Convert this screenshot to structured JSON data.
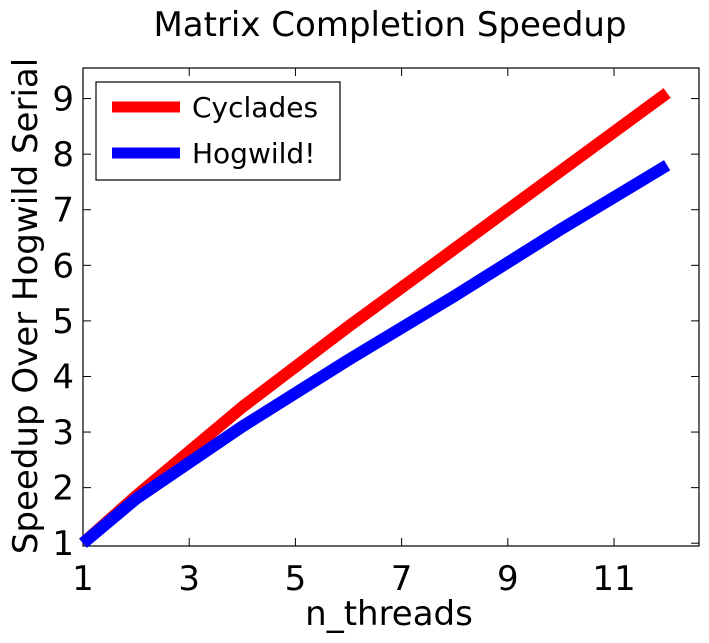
{
  "chart_data": {
    "type": "line",
    "title": "Matrix Completion Speedup",
    "xlabel": "n_threads",
    "ylabel": "Speedup Over Hogwild Serial",
    "xlim": [
      1,
      12.6
    ],
    "ylim": [
      0.95,
      9.55
    ],
    "x_ticks": [
      1,
      3,
      5,
      7,
      9,
      11
    ],
    "y_ticks": [
      1,
      2,
      3,
      4,
      5,
      6,
      7,
      8,
      9
    ],
    "legend_position": "top-left",
    "grid": false,
    "series": [
      {
        "name": "Cyclades",
        "color": "#ff0000",
        "x": [
          1,
          2,
          4,
          6,
          8,
          10,
          12
        ],
        "y": [
          1.0,
          1.85,
          3.45,
          4.9,
          6.3,
          7.7,
          9.1
        ]
      },
      {
        "name": "Hogwild!",
        "color": "#0000ff",
        "x": [
          1,
          2,
          4,
          6,
          8,
          10,
          12
        ],
        "y": [
          1.0,
          1.8,
          3.1,
          4.3,
          5.45,
          6.65,
          7.8
        ]
      }
    ]
  }
}
